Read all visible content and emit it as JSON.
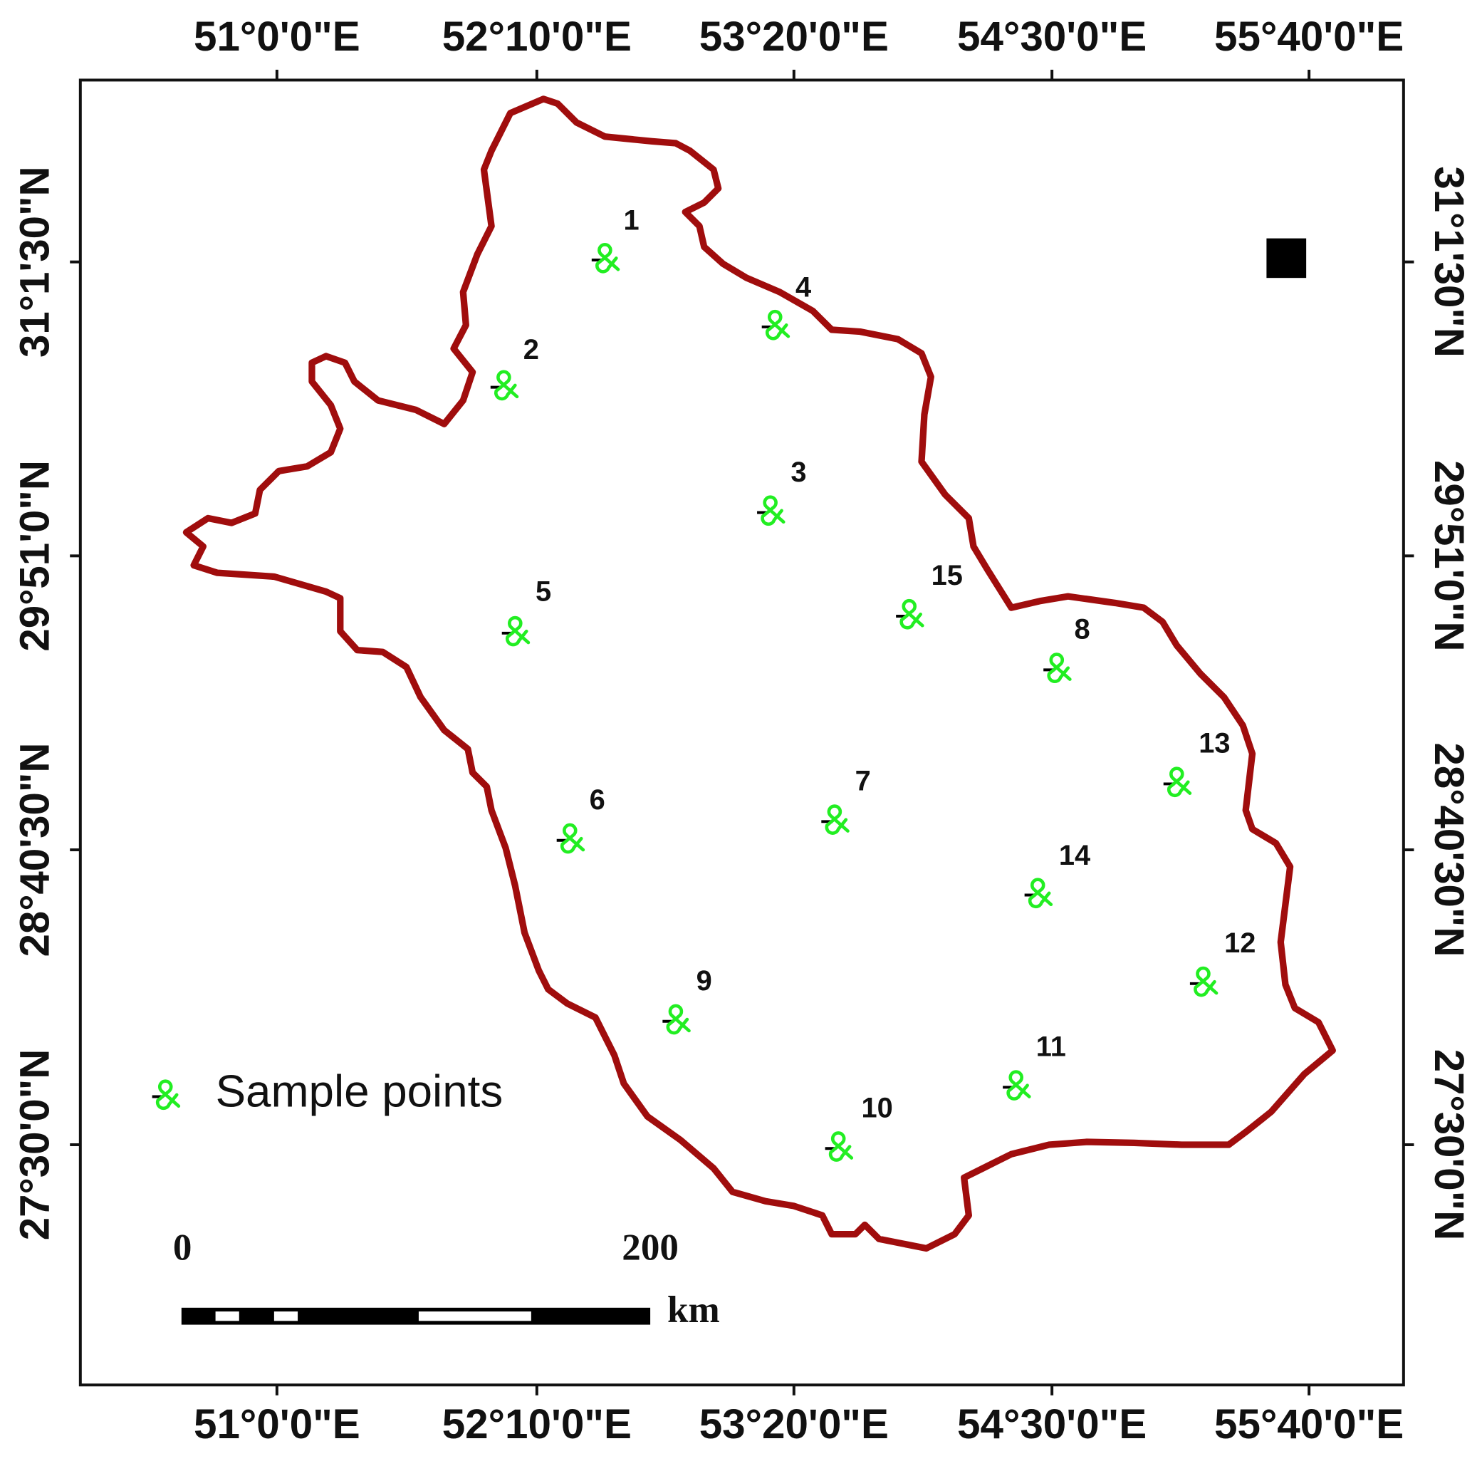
{
  "map": {
    "longitude_labels": [
      "51°0'0\"E",
      "52°10'0\"E",
      "53°20'0\"E",
      "54°30'0\"E",
      "55°40'0\"E"
    ],
    "latitude_labels": [
      "31°1'30\"N",
      "29°51'0\"N",
      "28°40'30\"N",
      "27°30'0\"N"
    ],
    "sample_points": [
      "1",
      "2",
      "3",
      "4",
      "5",
      "6",
      "7",
      "8",
      "9",
      "10",
      "11",
      "12",
      "13",
      "14",
      "15"
    ],
    "legend": "Sample points",
    "scale_bar": {
      "start": "0",
      "end": "200",
      "unit": "km"
    }
  }
}
